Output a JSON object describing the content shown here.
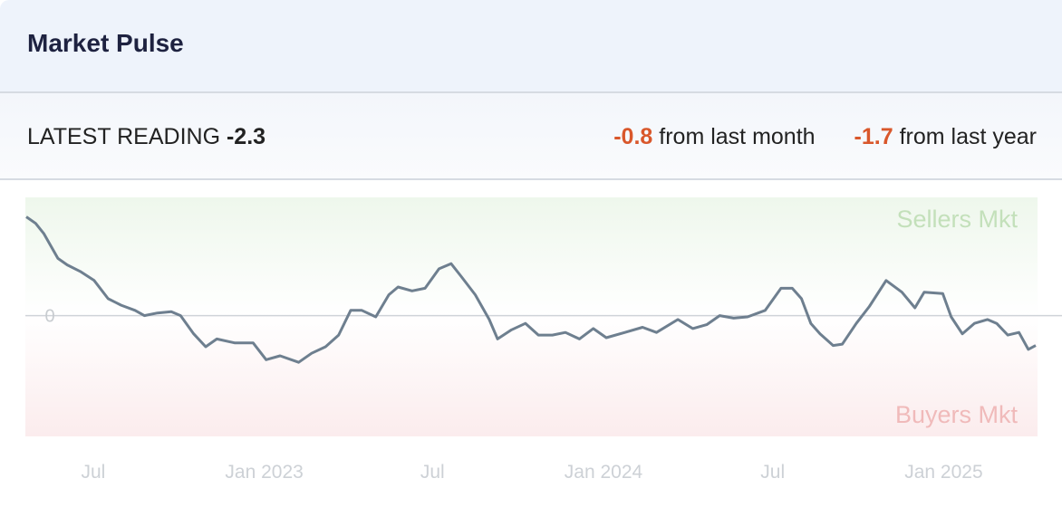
{
  "header": {
    "title": "Market Pulse"
  },
  "stats": {
    "latest_label": "LATEST READING",
    "latest_value": "-2.3",
    "month_change": "-0.8",
    "month_label": "from last month",
    "year_change": "-1.7",
    "year_label": "from last year"
  },
  "colors": {
    "line": "#6e7f8f",
    "negative": "#d9572b",
    "sellers": "#c3e0ba",
    "buyers": "#f0baba"
  },
  "chart_data": {
    "type": "line",
    "title": "",
    "xlabel": "",
    "ylabel": "",
    "ylim": [
      -9.3,
      9.1
    ],
    "xlim": [
      "2022-04-19",
      "2025-04-10"
    ],
    "zero_label": "0",
    "region_labels": {
      "top": "Sellers Mkt",
      "bottom": "Buyers Mkt"
    },
    "x_ticks": [
      {
        "date": "2022-07-01",
        "label": "Jul"
      },
      {
        "date": "2023-01-01",
        "label": "Jan 2023"
      },
      {
        "date": "2023-07-01",
        "label": "Jul"
      },
      {
        "date": "2024-01-01",
        "label": "Jan 2024"
      },
      {
        "date": "2024-07-01",
        "label": "Jul"
      },
      {
        "date": "2025-01-01",
        "label": "Jan 2025"
      }
    ],
    "grid": false,
    "series": [
      {
        "x": [
          "2022-04-20",
          "2022-04-30",
          "2022-05-09",
          "2022-05-24",
          "2022-06-03",
          "2022-06-17",
          "2022-07-02",
          "2022-07-17",
          "2022-07-31",
          "2022-08-15",
          "2022-08-25",
          "2022-09-08",
          "2022-09-23",
          "2022-10-03",
          "2022-10-17",
          "2022-10-30",
          "2022-11-11",
          "2022-11-30",
          "2022-12-20",
          "2023-01-03",
          "2023-01-18",
          "2023-02-07",
          "2023-02-21",
          "2023-03-08",
          "2023-03-22",
          "2023-04-04",
          "2023-04-16",
          "2023-05-01",
          "2023-05-15",
          "2023-05-25",
          "2023-06-09",
          "2023-06-23",
          "2023-07-08",
          "2023-07-21",
          "2023-08-01",
          "2023-08-16",
          "2023-08-31",
          "2023-09-09",
          "2023-09-24",
          "2023-10-09",
          "2023-10-23",
          "2023-11-07",
          "2023-11-21",
          "2023-12-06",
          "2023-12-21",
          "2024-01-04",
          "2024-01-24",
          "2024-02-12",
          "2024-02-27",
          "2024-03-21",
          "2024-04-06",
          "2024-04-21",
          "2024-05-05",
          "2024-05-20",
          "2024-06-04",
          "2024-06-23",
          "2024-07-10",
          "2024-07-22",
          "2024-08-01",
          "2024-08-11",
          "2024-08-21",
          "2024-09-04",
          "2024-09-14",
          "2024-09-29",
          "2024-10-13",
          "2024-10-31",
          "2024-11-17",
          "2024-12-01",
          "2024-12-11",
          "2024-12-31",
          "2025-01-09",
          "2025-01-21",
          "2025-02-03",
          "2025-02-17",
          "2025-02-27",
          "2025-03-11",
          "2025-03-23",
          "2025-04-02",
          "2025-04-10"
        ],
        "y": [
          7.6,
          7.1,
          6.3,
          4.4,
          3.9,
          3.4,
          2.7,
          1.3,
          0.8,
          0.4,
          0.0,
          0.2,
          0.3,
          0.0,
          -1.4,
          -2.4,
          -1.8,
          -2.1,
          -2.1,
          -3.4,
          -3.1,
          -3.6,
          -2.9,
          -2.4,
          -1.5,
          0.4,
          0.4,
          -0.1,
          1.6,
          2.2,
          1.9,
          2.1,
          3.6,
          4.0,
          3.0,
          1.6,
          -0.3,
          -1.8,
          -1.1,
          -0.6,
          -1.5,
          -1.5,
          -1.3,
          -1.8,
          -1.0,
          -1.7,
          -1.3,
          -0.9,
          -1.3,
          -0.3,
          -1.0,
          -0.7,
          0.0,
          -0.2,
          -0.1,
          0.4,
          2.1,
          2.1,
          1.3,
          -0.6,
          -1.4,
          -2.3,
          -2.2,
          -0.6,
          0.7,
          2.7,
          1.8,
          0.6,
          1.8,
          1.7,
          -0.1,
          -1.4,
          -0.6,
          -0.3,
          -0.6,
          -1.5,
          -1.3,
          -2.6,
          -2.3
        ]
      }
    ]
  }
}
